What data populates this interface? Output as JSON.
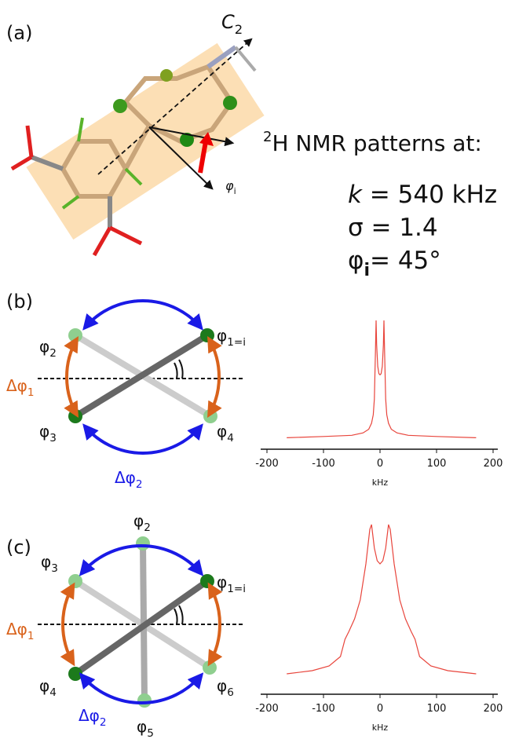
{
  "panel_a": {
    "label": "(a)",
    "axis": {
      "symbol": "C",
      "sub": "2"
    },
    "angle": {
      "symbol": "φ",
      "sub": "i"
    }
  },
  "conditions": {
    "heading": {
      "sup": "2",
      "text": "H NMR patterns at:"
    },
    "k": {
      "symbol": "k",
      "text": " = 540 kHz"
    },
    "sigma": "σ  = 1.4",
    "phi": {
      "symbol": "φ",
      "sub": "i",
      "text": "= 45°"
    }
  },
  "panel_b": {
    "label": "(b)",
    "sites": [
      {
        "symbol": "φ",
        "sub": "2"
      },
      {
        "symbol": "φ",
        "sub": "1=i"
      },
      {
        "symbol": "φ",
        "sub": "3"
      },
      {
        "symbol": "φ",
        "sub": "4"
      }
    ],
    "arcs": [
      {
        "symbol": "Δφ",
        "sub": "1"
      },
      {
        "symbol": "Δφ",
        "sub": "2"
      }
    ]
  },
  "panel_c": {
    "label": "(c)",
    "sites": [
      {
        "symbol": "φ",
        "sub": "2"
      },
      {
        "symbol": "φ",
        "sub": "3"
      },
      {
        "symbol": "φ",
        "sub": "1=i"
      },
      {
        "symbol": "φ",
        "sub": "4"
      },
      {
        "symbol": "φ",
        "sub": "6"
      },
      {
        "symbol": "φ",
        "sub": "5"
      }
    ],
    "arcs": [
      {
        "symbol": "Δφ",
        "sub": "1"
      },
      {
        "symbol": "Δφ",
        "sub": "2"
      }
    ]
  },
  "chart_data": [
    {
      "type": "line",
      "xlabel": "kHz",
      "color": "#e8453c",
      "x": [
        -165,
        -100,
        -50,
        -30,
        -20,
        -15,
        -12,
        -10,
        -8,
        -7,
        -6,
        -4,
        -2,
        0,
        2,
        4,
        6,
        7,
        8,
        10,
        12,
        15,
        20,
        30,
        50,
        100,
        170
      ],
      "values": [
        0.03,
        0.04,
        0.05,
        0.07,
        0.1,
        0.15,
        0.22,
        0.35,
        0.75,
        1.0,
        0.8,
        0.62,
        0.56,
        0.55,
        0.56,
        0.62,
        0.8,
        1.0,
        0.75,
        0.35,
        0.22,
        0.15,
        0.1,
        0.07,
        0.05,
        0.04,
        0.03
      ],
      "xlim": [
        -200,
        200
      ],
      "xticks": [
        -200,
        -100,
        0,
        100,
        200
      ],
      "ylim": [
        0,
        1
      ]
    },
    {
      "type": "line",
      "xlabel": "kHz",
      "color": "#e8453c",
      "x": [
        -165,
        -120,
        -90,
        -70,
        -62,
        -55,
        -45,
        -35,
        -25,
        -18,
        -15,
        -10,
        -5,
        0,
        5,
        10,
        15,
        18,
        25,
        35,
        45,
        55,
        62,
        70,
        90,
        120,
        170
      ],
      "values": [
        0.05,
        0.07,
        0.1,
        0.16,
        0.27,
        0.32,
        0.4,
        0.52,
        0.75,
        0.97,
        1.0,
        0.85,
        0.77,
        0.75,
        0.77,
        0.85,
        1.0,
        0.97,
        0.75,
        0.52,
        0.4,
        0.32,
        0.27,
        0.16,
        0.1,
        0.07,
        0.05
      ],
      "xlim": [
        -200,
        200
      ],
      "xticks": [
        -200,
        -100,
        0,
        100,
        200
      ],
      "ylim": [
        0,
        1
      ]
    }
  ]
}
